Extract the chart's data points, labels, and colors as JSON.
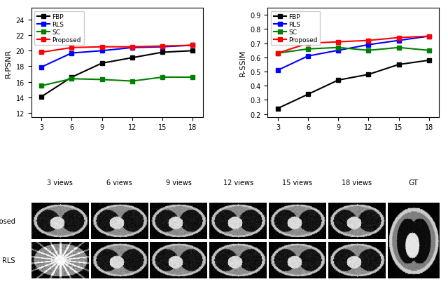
{
  "views": [
    3,
    6,
    9,
    12,
    15,
    18
  ],
  "psnr": {
    "FBP": [
      14.1,
      16.6,
      18.4,
      19.1,
      19.8,
      20.0
    ],
    "RLS": [
      17.9,
      19.7,
      20.0,
      20.4,
      20.5,
      20.7
    ],
    "SC": [
      15.5,
      16.4,
      16.3,
      16.1,
      16.6,
      16.6
    ],
    "Proposed": [
      19.8,
      20.4,
      20.5,
      20.5,
      20.6,
      20.7
    ]
  },
  "ssim": {
    "FBP": [
      0.24,
      0.34,
      0.44,
      0.48,
      0.55,
      0.58
    ],
    "RLS": [
      0.51,
      0.61,
      0.65,
      0.69,
      0.72,
      0.75
    ],
    "SC": [
      0.63,
      0.66,
      0.67,
      0.65,
      0.67,
      0.65
    ],
    "Proposed": [
      0.63,
      0.7,
      0.71,
      0.72,
      0.74,
      0.75
    ]
  },
  "colors": {
    "FBP": "black",
    "RLS": "blue",
    "SC": "green",
    "Proposed": "red"
  },
  "psnr_ylim": [
    11.5,
    25.5
  ],
  "psnr_yticks": [
    12,
    14,
    16,
    18,
    20,
    22,
    24
  ],
  "ssim_ylim": [
    0.18,
    0.95
  ],
  "ssim_yticks": [
    0.2,
    0.3,
    0.4,
    0.5,
    0.6,
    0.7,
    0.8,
    0.9
  ],
  "ylabel_psnr": "R-PSNR",
  "ylabel_ssim": "R-SSIM",
  "view_labels": [
    "3 views",
    "6 views",
    "9 views",
    "12 views",
    "15 views",
    "18 views"
  ],
  "row_labels": [
    "Proposed",
    "RLS"
  ],
  "gt_label": "GT",
  "marker": "s",
  "linewidth": 1.5,
  "markersize": 5
}
